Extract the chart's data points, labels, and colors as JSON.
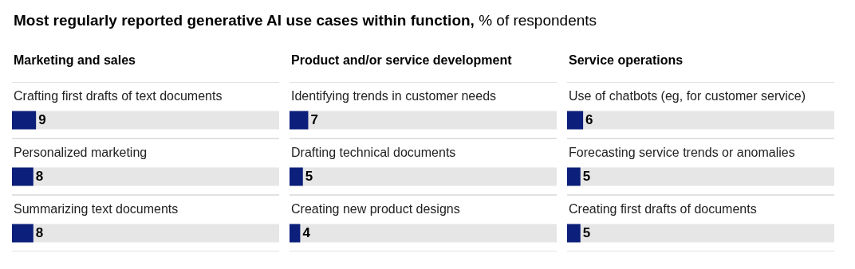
{
  "chart_data": [
    {
      "type": "bar",
      "orientation": "horizontal",
      "title": "Marketing and sales",
      "annotations": [
        "Most regularly reported generative AI use cases within function,",
        "% of respondents"
      ],
      "categories": [
        "Crafting first drafts of text documents",
        "Personalized marketing",
        "Summarizing text documents"
      ],
      "values": [
        9,
        8,
        8
      ],
      "color": "#0b1f7b",
      "xlim": [
        0,
        100
      ],
      "bands": [
        {
          "axis": "x",
          "from": 0,
          "to": 100,
          "color": "#e6e6e6"
        }
      ],
      "data_labels": true,
      "tick_labels": false
    },
    {
      "type": "bar",
      "orientation": "horizontal",
      "title": "Product and/or service development",
      "categories": [
        "Identifying trends in customer needs",
        "Drafting technical documents",
        "Creating new product designs"
      ],
      "values": [
        7,
        5,
        4
      ],
      "color": "#0b1f7b",
      "xlim": [
        0,
        100
      ],
      "bands": [
        {
          "axis": "x",
          "from": 0,
          "to": 100,
          "color": "#e6e6e6"
        }
      ],
      "data_labels": true,
      "tick_labels": false
    },
    {
      "type": "bar",
      "orientation": "horizontal",
      "title": "Service operations",
      "categories": [
        "Use of chatbots (eg, for customer service)",
        "Forecasting service trends or anomalies",
        "Creating first drafts of documents"
      ],
      "values": [
        6,
        5,
        5
      ],
      "color": "#0b1f7b",
      "xlim": [
        0,
        100
      ],
      "bands": [
        {
          "axis": "x",
          "from": 0,
          "to": 100,
          "color": "#e6e6e6"
        }
      ],
      "data_labels": true,
      "tick_labels": false
    }
  ]
}
